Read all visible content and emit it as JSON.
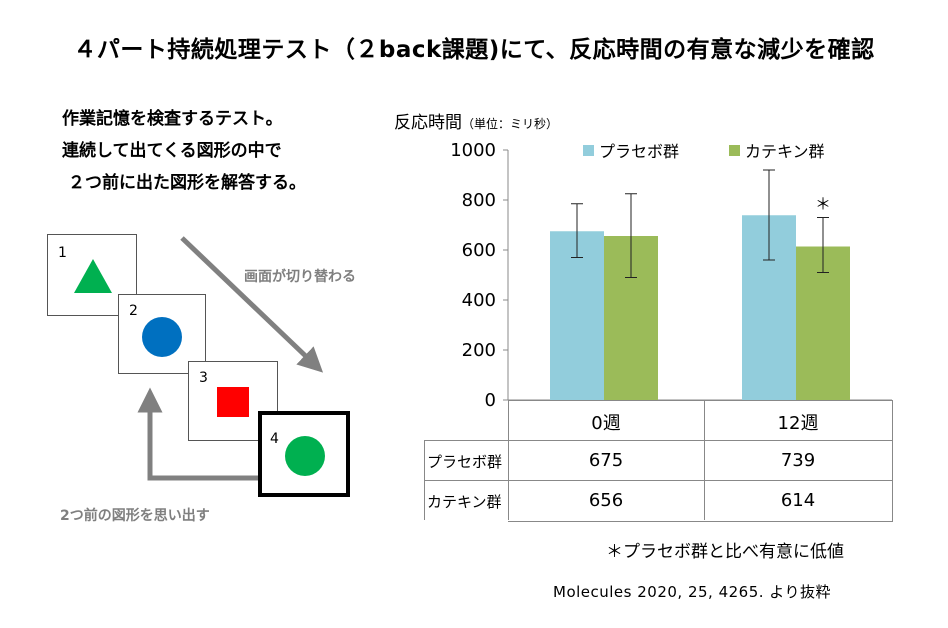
{
  "slide": {
    "title": "４パート持続処理テスト（２back課題)にて、反応時間の有意な減少を確認",
    "description": [
      "作業記憶を検査するテスト。",
      "連続して出てくる図形の中で",
      "２つ前に出た図形を解答する。"
    ],
    "diagram": {
      "cards": [
        {
          "number": "1",
          "shape": "triangle",
          "color": "#00b050"
        },
        {
          "number": "2",
          "shape": "circle",
          "color": "#0070c0"
        },
        {
          "number": "3",
          "shape": "square",
          "color": "#ff0000"
        },
        {
          "number": "4",
          "shape": "circle",
          "color": "#00b050"
        }
      ],
      "arrow_label_switch": "画面が切り替わる",
      "arrow_label_recall": "2つ前の図形を思い出す",
      "arrow_color": "#808080"
    },
    "footnote": "＊プラセボ群と比べ有意に低値",
    "citation": "Molecules  2020,  25,  4265.  より抜粋"
  },
  "chart_data": {
    "type": "bar",
    "title": "反応時間",
    "title_unit": "（単位：ミリ秒）",
    "categories": [
      "0週",
      "12週"
    ],
    "series": [
      {
        "name": "プラセボ群",
        "color": "#92cddc",
        "values": [
          675,
          739
        ],
        "error_high": [
          785,
          920
        ],
        "error_low": [
          570,
          560
        ]
      },
      {
        "name": "カテキン群",
        "color": "#9bbb59",
        "values": [
          656,
          614
        ],
        "error_high": [
          825,
          730
        ],
        "error_low": [
          490,
          510
        ]
      }
    ],
    "ylim": [
      0,
      1000
    ],
    "yticks": [
      "0",
      "200",
      "400",
      "600",
      "800",
      "1000"
    ],
    "significance": [
      {
        "category_index": 1,
        "series_index": 1,
        "mark": "＊"
      }
    ],
    "legend_position": "top",
    "grid": false
  }
}
